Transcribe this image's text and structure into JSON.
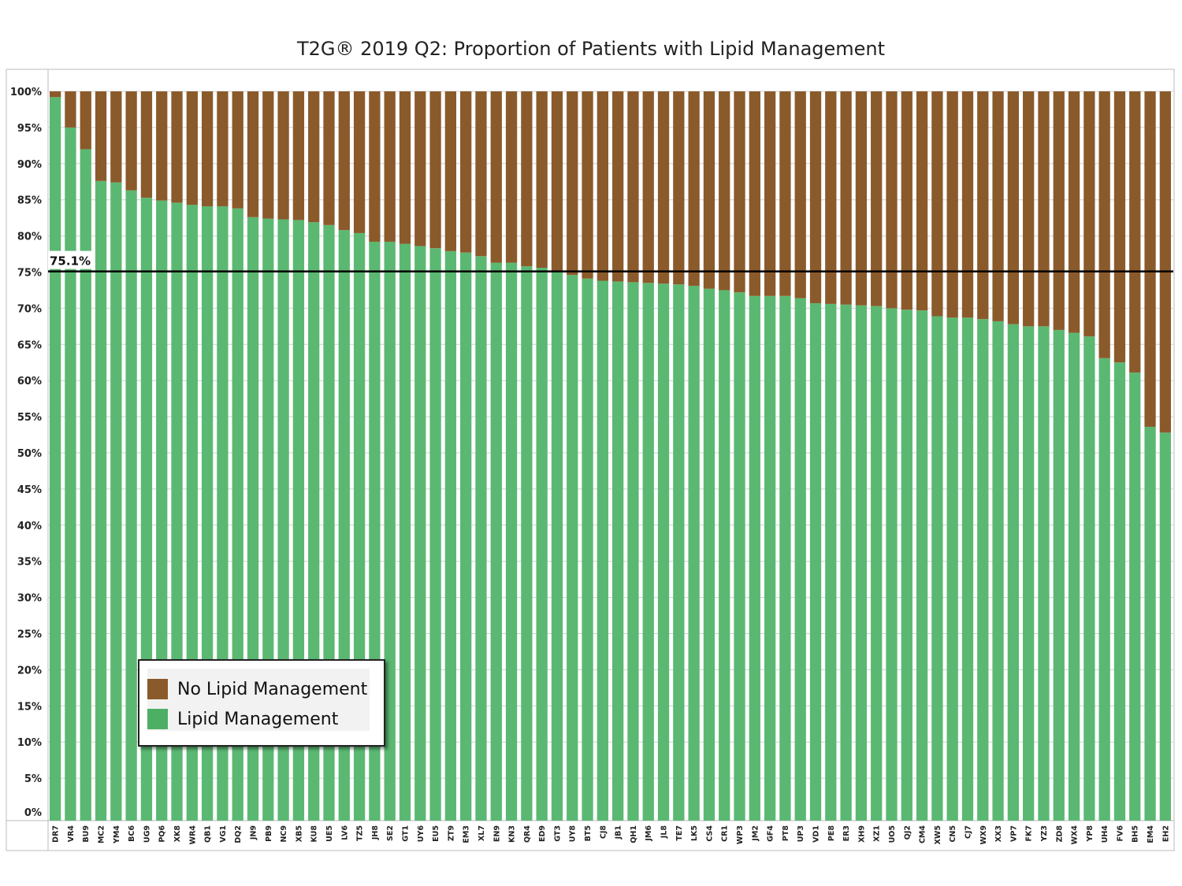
{
  "chart_data": {
    "type": "bar",
    "stacked": true,
    "title": "T2G® 2019 Q2: Proportion of Patients with Lipid Management",
    "ylim": [
      0,
      100
    ],
    "y_ticks": [
      "0%",
      "5%",
      "10%",
      "15%",
      "20%",
      "25%",
      "30%",
      "35%",
      "40%",
      "45%",
      "50%",
      "55%",
      "60%",
      "65%",
      "70%",
      "75%",
      "80%",
      "85%",
      "90%",
      "95%",
      "100%"
    ],
    "grid": true,
    "legend_position": "bottom-left",
    "categories": [
      "DR7",
      "VR4",
      "BU9",
      "MC2",
      "YM4",
      "BC6",
      "UG9",
      "PQ6",
      "XK8",
      "WR4",
      "QB1",
      "VG1",
      "DQ2",
      "JN9",
      "PB9",
      "NC9",
      "XB5",
      "KU8",
      "UE5",
      "LV6",
      "TZ5",
      "JH8",
      "SE2",
      "GT1",
      "UY6",
      "EU5",
      "ZT9",
      "EM3",
      "XL7",
      "EN9",
      "KN3",
      "QR4",
      "ED9",
      "GT3",
      "UY8",
      "BT5",
      "CJ8",
      "JB1",
      "QH1",
      "JM6",
      "JL8",
      "TE7",
      "LK5",
      "CS4",
      "CR1",
      "WP3",
      "JM2",
      "GF4",
      "PT8",
      "UP3",
      "VD1",
      "PE8",
      "ER3",
      "XH9",
      "XZ1",
      "UO5",
      "QJ2",
      "CM4",
      "XW5",
      "CN5",
      "CJ7",
      "WX9",
      "XX3",
      "VP7",
      "FK7",
      "YZ3",
      "ZD8",
      "WX4",
      "YP8",
      "UH4",
      "FV6",
      "BH5",
      "EM4",
      "EH2"
    ],
    "series": [
      {
        "name": "Lipid Management",
        "color": "#5bb872",
        "values": [
          99.2,
          95.0,
          92.0,
          87.6,
          87.4,
          86.3,
          85.3,
          84.9,
          84.6,
          84.3,
          84.1,
          84.1,
          83.8,
          82.6,
          82.4,
          82.3,
          82.2,
          81.9,
          81.5,
          80.8,
          80.4,
          79.2,
          79.2,
          78.9,
          78.6,
          78.3,
          77.9,
          77.7,
          77.2,
          76.3,
          76.3,
          75.8,
          75.6,
          75.1,
          74.6,
          74.1,
          73.8,
          73.7,
          73.6,
          73.5,
          73.4,
          73.3,
          73.1,
          72.7,
          72.5,
          72.2,
          71.7,
          71.7,
          71.7,
          71.4,
          70.7,
          70.6,
          70.5,
          70.4,
          70.3,
          70.0,
          69.8,
          69.7,
          68.9,
          68.7,
          68.7,
          68.5,
          68.2,
          67.8,
          67.5,
          67.5,
          67.0,
          66.6,
          66.1,
          63.1,
          62.5,
          61.1,
          53.6,
          52.8
        ]
      },
      {
        "name": "No Lipid Management",
        "color": "#8b5a2b",
        "values": [
          0.8,
          5.0,
          8.0,
          12.4,
          12.6,
          13.7,
          14.7,
          15.1,
          15.4,
          15.7,
          15.9,
          15.9,
          16.2,
          17.4,
          17.6,
          17.7,
          17.8,
          18.1,
          18.5,
          19.2,
          19.6,
          20.8,
          20.8,
          21.1,
          21.4,
          21.7,
          22.1,
          22.3,
          22.8,
          23.7,
          23.7,
          24.2,
          24.4,
          24.9,
          25.4,
          25.9,
          26.2,
          26.3,
          26.4,
          26.5,
          26.6,
          26.7,
          26.9,
          27.3,
          27.5,
          27.8,
          28.3,
          28.3,
          28.3,
          28.6,
          29.3,
          29.4,
          29.5,
          29.6,
          29.7,
          30.0,
          30.2,
          30.3,
          31.1,
          31.3,
          31.3,
          31.5,
          31.8,
          32.2,
          32.5,
          32.5,
          33.0,
          33.4,
          33.9,
          36.9,
          37.5,
          38.9,
          46.4,
          47.2
        ]
      }
    ],
    "reference_line": {
      "value": 75.1,
      "label": "75.1%"
    },
    "legend": [
      {
        "name": "No Lipid Management",
        "color": "#8b5a2b"
      },
      {
        "name": "Lipid Management",
        "color": "#4caf63"
      }
    ]
  }
}
